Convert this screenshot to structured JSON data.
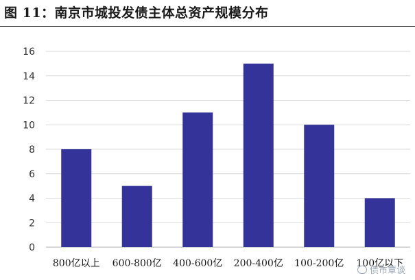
{
  "figure": {
    "title": "图 11：南京市城投发债主体总资产规模分布"
  },
  "watermark": {
    "text": "债市覃谈"
  },
  "colors": {
    "bar": "#333399",
    "axis": "#b0b0b0",
    "grid": "#d9d9d9"
  },
  "chart_data": {
    "type": "bar",
    "title": "",
    "xlabel": "",
    "ylabel": "",
    "categories": [
      "800亿以上",
      "600-800亿",
      "400-600亿",
      "200-400亿",
      "100-200亿",
      "100亿以下"
    ],
    "values": [
      8,
      5,
      11,
      15,
      10,
      4
    ],
    "ylim": [
      0,
      16
    ],
    "yticks": [
      0,
      2,
      4,
      6,
      8,
      10,
      12,
      14,
      16
    ],
    "grid": true,
    "legend": "none"
  }
}
